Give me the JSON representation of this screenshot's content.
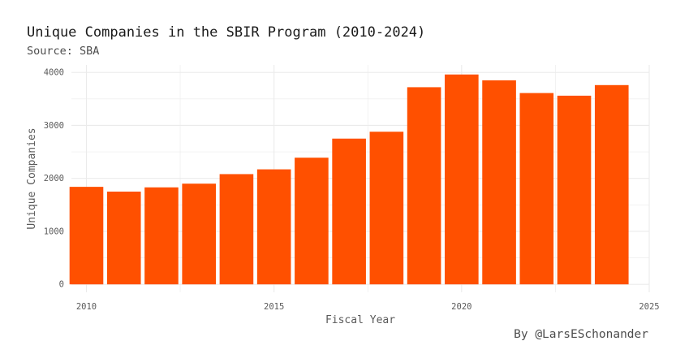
{
  "chart_data": {
    "type": "bar",
    "title": "Unique Companies in the SBIR Program (2010-2024)",
    "subtitle": "Source: SBA",
    "caption": "By @LarsESchonander",
    "xlabel": "Fiscal Year",
    "ylabel": "Unique Companies",
    "categories": [
      2010,
      2011,
      2012,
      2013,
      2014,
      2015,
      2016,
      2017,
      2018,
      2019,
      2020,
      2021,
      2022,
      2023,
      2024
    ],
    "values": [
      1840,
      1750,
      1830,
      1900,
      2080,
      2170,
      2390,
      2750,
      2880,
      3720,
      3960,
      3850,
      3610,
      3560,
      3760
    ],
    "xlim": [
      2009.6,
      2025.0
    ],
    "ylim": [
      -150,
      4140
    ],
    "x_ticks": [
      2010,
      2015,
      2020,
      2025
    ],
    "y_ticks": [
      0,
      1000,
      2000,
      3000,
      4000
    ],
    "bar_color": "#FF5000",
    "grid_color": "#EBEBEB",
    "grid": true
  }
}
